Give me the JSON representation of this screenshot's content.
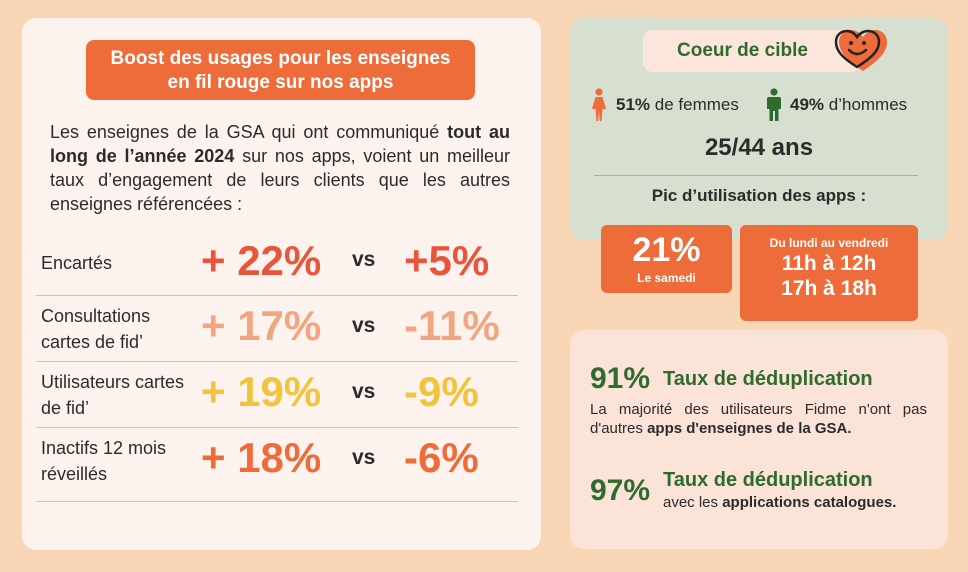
{
  "left": {
    "headline_line1": "Boost des usages pour les enseignes",
    "headline_line2": "en fil rouge sur nos apps",
    "intro_part1": "Les enseignes de la GSA qui ont communiqué ",
    "intro_bold": "tout au long de l’année 2024",
    "intro_part2": " sur nos apps, voient un meilleur taux d’engagement de leurs clients que les autres enseignes référencées :",
    "rows": [
      {
        "label": "Encartés",
        "ours": "+ 22%",
        "vs": "vs",
        "others": "+5%",
        "color": "#e8553a"
      },
      {
        "label": "Consultations cartes de fid’",
        "ours": "+ 17%",
        "vs": "vs",
        "others": "-11%",
        "color": "#f2a67f"
      },
      {
        "label": "Utilisateurs cartes de fid’",
        "ours": "+ 19%",
        "vs": "vs",
        "others": "-9%",
        "color": "#f2c43d"
      },
      {
        "label": "Inactifs 12 mois réveillés",
        "ours": "+ 18%",
        "vs": "vs",
        "others": "-6%",
        "color": "#ee6b3a"
      }
    ]
  },
  "target": {
    "title": "Coeur de cible",
    "women_pct": "51%",
    "women_label": " de femmes",
    "men_pct": "49%",
    "men_label": " d’hommes",
    "ages": "25/44 ans",
    "peak_title": "Pic d’utilisation des apps :",
    "saturday_pct": "21%",
    "saturday_label": "Le samedi",
    "weekdays_label": "Du lundi au vendredi",
    "slot1": "11h à 12h",
    "slot2": "17h à 18h",
    "woman_icon_color": "#ee6b3a",
    "man_icon_color": "#2e6b2e"
  },
  "dedup": {
    "pct1": "91%",
    "title1": "Taux de déduplication",
    "text1_part1": "La majorité des utilisateurs Fidme n'ont pas d'autres ",
    "text1_bold": "apps d'enseignes de la GSA.",
    "pct2": "97%",
    "title2": "Taux de déduplication",
    "text2_part1": "avec les ",
    "text2_bold": "applications catalogues."
  }
}
